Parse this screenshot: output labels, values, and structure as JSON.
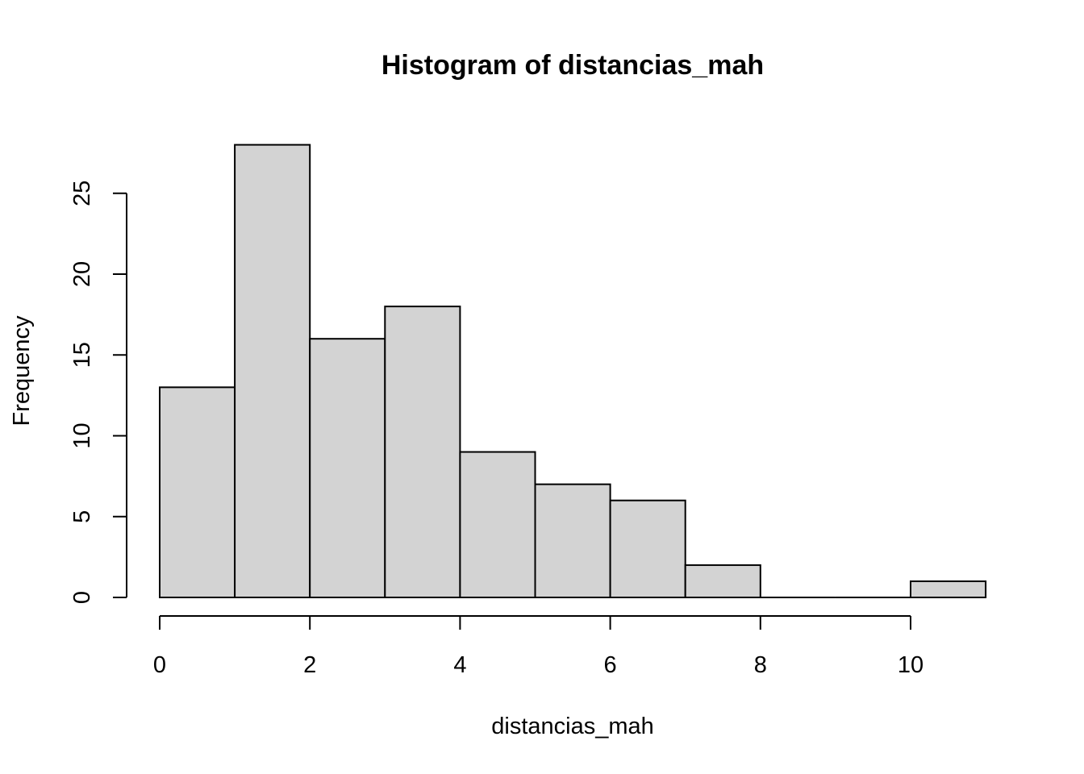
{
  "chart_data": {
    "type": "histogram",
    "title": "Histogram of distancias_mah",
    "xlabel": "distancias_mah",
    "ylabel": "Frequency",
    "bins": [
      {
        "start": 0,
        "end": 1,
        "count": 13
      },
      {
        "start": 1,
        "end": 2,
        "count": 28
      },
      {
        "start": 2,
        "end": 3,
        "count": 16
      },
      {
        "start": 3,
        "end": 4,
        "count": 18
      },
      {
        "start": 4,
        "end": 5,
        "count": 9
      },
      {
        "start": 5,
        "end": 6,
        "count": 7
      },
      {
        "start": 6,
        "end": 7,
        "count": 6
      },
      {
        "start": 7,
        "end": 8,
        "count": 2
      },
      {
        "start": 8,
        "end": 9,
        "count": 0
      },
      {
        "start": 9,
        "end": 10,
        "count": 0
      },
      {
        "start": 10,
        "end": 11,
        "count": 1
      }
    ],
    "x_ticks": [
      0,
      2,
      4,
      6,
      8,
      10
    ],
    "y_ticks": [
      0,
      5,
      10,
      15,
      20,
      25
    ],
    "xlim": [
      0,
      11
    ],
    "ylim": [
      0,
      28
    ],
    "bar_color": "#d3d3d3",
    "bar_border_color": "#000000",
    "grid": false
  }
}
